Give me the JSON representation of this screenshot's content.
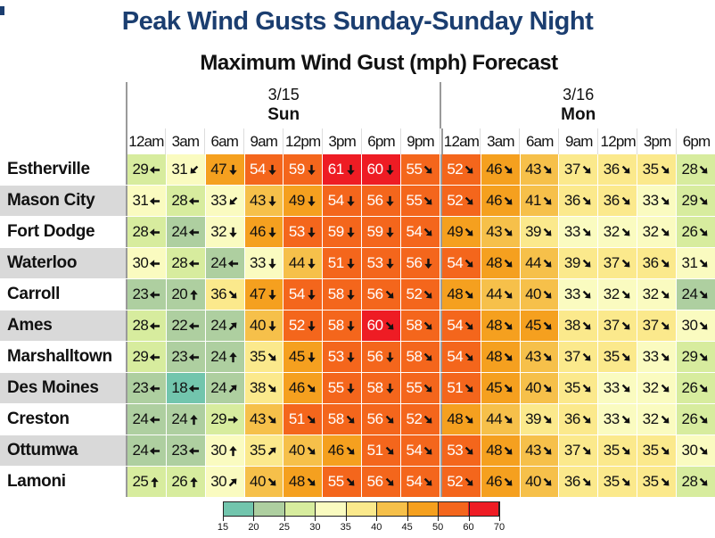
{
  "page": {
    "title": "Peak Wind Gusts Sunday-Sunday Night"
  },
  "colors": {
    "title": "#1b3e70",
    "header_line": "#9a9a9a",
    "grid_line": "#dddddd",
    "row_stripe": "#d9d9d9",
    "arrow": "#111111"
  },
  "chart_data": {
    "type": "heatmap",
    "title": "Maximum Wind Gust (mph) Forecast",
    "unit": "mph",
    "day_groups": [
      {
        "date": "3/15",
        "day": "Sun",
        "span": 8
      },
      {
        "date": "3/16",
        "day": "Mon",
        "span": 7
      }
    ],
    "columns": [
      "12am",
      "3am",
      "6am",
      "9am",
      "12pm",
      "3pm",
      "6pm",
      "9pm",
      "12am",
      "3am",
      "6am",
      "9am",
      "12pm",
      "3pm",
      "6pm"
    ],
    "rows": [
      {
        "city": "Estherville",
        "values": [
          29,
          31,
          47,
          54,
          59,
          61,
          60,
          55,
          52,
          46,
          43,
          37,
          36,
          35,
          28
        ],
        "dirs": [
          "W",
          "SW",
          "S",
          "S",
          "S",
          "S",
          "S",
          "SE",
          "SE",
          "SE",
          "SE",
          "SE",
          "SE",
          "SE",
          "SE"
        ]
      },
      {
        "city": "Mason City",
        "values": [
          31,
          28,
          33,
          43,
          49,
          54,
          56,
          55,
          52,
          46,
          41,
          36,
          36,
          33,
          29
        ],
        "dirs": [
          "W",
          "W",
          "SW",
          "S",
          "S",
          "S",
          "S",
          "SE",
          "SE",
          "SE",
          "SE",
          "SE",
          "SE",
          "SE",
          "SE"
        ]
      },
      {
        "city": "Fort Dodge",
        "values": [
          28,
          24,
          32,
          46,
          53,
          59,
          59,
          54,
          49,
          43,
          39,
          33,
          32,
          32,
          26
        ],
        "dirs": [
          "W",
          "W",
          "S",
          "S",
          "S",
          "S",
          "S",
          "SE",
          "SE",
          "SE",
          "SE",
          "SE",
          "SE",
          "SE",
          "SE"
        ]
      },
      {
        "city": "Waterloo",
        "values": [
          30,
          28,
          24,
          33,
          44,
          51,
          53,
          56,
          54,
          48,
          44,
          39,
          37,
          36,
          31
        ],
        "dirs": [
          "W",
          "W",
          "W",
          "S",
          "S",
          "S",
          "S",
          "S",
          "SE",
          "SE",
          "SE",
          "SE",
          "SE",
          "SE",
          "SE"
        ]
      },
      {
        "city": "Carroll",
        "values": [
          23,
          20,
          36,
          47,
          54,
          58,
          56,
          52,
          48,
          44,
          40,
          33,
          32,
          32,
          24
        ],
        "dirs": [
          "W",
          "N",
          "SE",
          "S",
          "S",
          "S",
          "SE",
          "SE",
          "SE",
          "SE",
          "SE",
          "SE",
          "SE",
          "SE",
          "SE"
        ]
      },
      {
        "city": "Ames",
        "values": [
          28,
          22,
          24,
          40,
          52,
          58,
          60,
          58,
          54,
          48,
          45,
          38,
          37,
          37,
          30
        ],
        "dirs": [
          "W",
          "W",
          "NE",
          "S",
          "S",
          "S",
          "SE",
          "SE",
          "SE",
          "SE",
          "SE",
          "SE",
          "SE",
          "SE",
          "SE"
        ]
      },
      {
        "city": "Marshalltown",
        "values": [
          29,
          23,
          24,
          35,
          45,
          53,
          56,
          58,
          54,
          48,
          43,
          37,
          35,
          33,
          29
        ],
        "dirs": [
          "W",
          "W",
          "N",
          "SE",
          "S",
          "S",
          "S",
          "SE",
          "SE",
          "SE",
          "SE",
          "SE",
          "SE",
          "SE",
          "SE"
        ]
      },
      {
        "city": "Des Moines",
        "values": [
          23,
          18,
          24,
          38,
          46,
          55,
          58,
          55,
          51,
          45,
          40,
          35,
          33,
          32,
          26
        ],
        "dirs": [
          "W",
          "W",
          "NE",
          "SE",
          "SE",
          "S",
          "S",
          "SE",
          "SE",
          "SE",
          "SE",
          "SE",
          "SE",
          "SE",
          "SE"
        ]
      },
      {
        "city": "Creston",
        "values": [
          24,
          24,
          29,
          43,
          51,
          58,
          56,
          52,
          48,
          44,
          39,
          36,
          33,
          32,
          26
        ],
        "dirs": [
          "W",
          "N",
          "E",
          "SE",
          "SE",
          "SE",
          "SE",
          "SE",
          "SE",
          "SE",
          "SE",
          "SE",
          "SE",
          "SE",
          "SE"
        ]
      },
      {
        "city": "Ottumwa",
        "values": [
          24,
          23,
          30,
          35,
          40,
          46,
          51,
          54,
          53,
          48,
          43,
          37,
          35,
          35,
          30
        ],
        "dirs": [
          "W",
          "W",
          "N",
          "NE",
          "SE",
          "SE",
          "SE",
          "SE",
          "SE",
          "SE",
          "SE",
          "SE",
          "SE",
          "SE",
          "SE"
        ]
      },
      {
        "city": "Lamoni",
        "values": [
          25,
          26,
          30,
          40,
          48,
          55,
          56,
          54,
          52,
          46,
          40,
          36,
          35,
          35,
          28
        ],
        "dirs": [
          "N",
          "N",
          "NE",
          "SE",
          "SE",
          "SE",
          "SE",
          "SE",
          "SE",
          "SE",
          "SE",
          "SE",
          "SE",
          "SE",
          "SE"
        ]
      }
    ],
    "legend": {
      "ticks": [
        15,
        20,
        25,
        30,
        35,
        40,
        45,
        50,
        60,
        70
      ],
      "colors": [
        "#72c5ad",
        "#aecfa0",
        "#d7ec9e",
        "#fafbc0",
        "#fbe98c",
        "#f6c04a",
        "#f5a01f",
        "#f4661c",
        "#ee1c24"
      ]
    }
  }
}
